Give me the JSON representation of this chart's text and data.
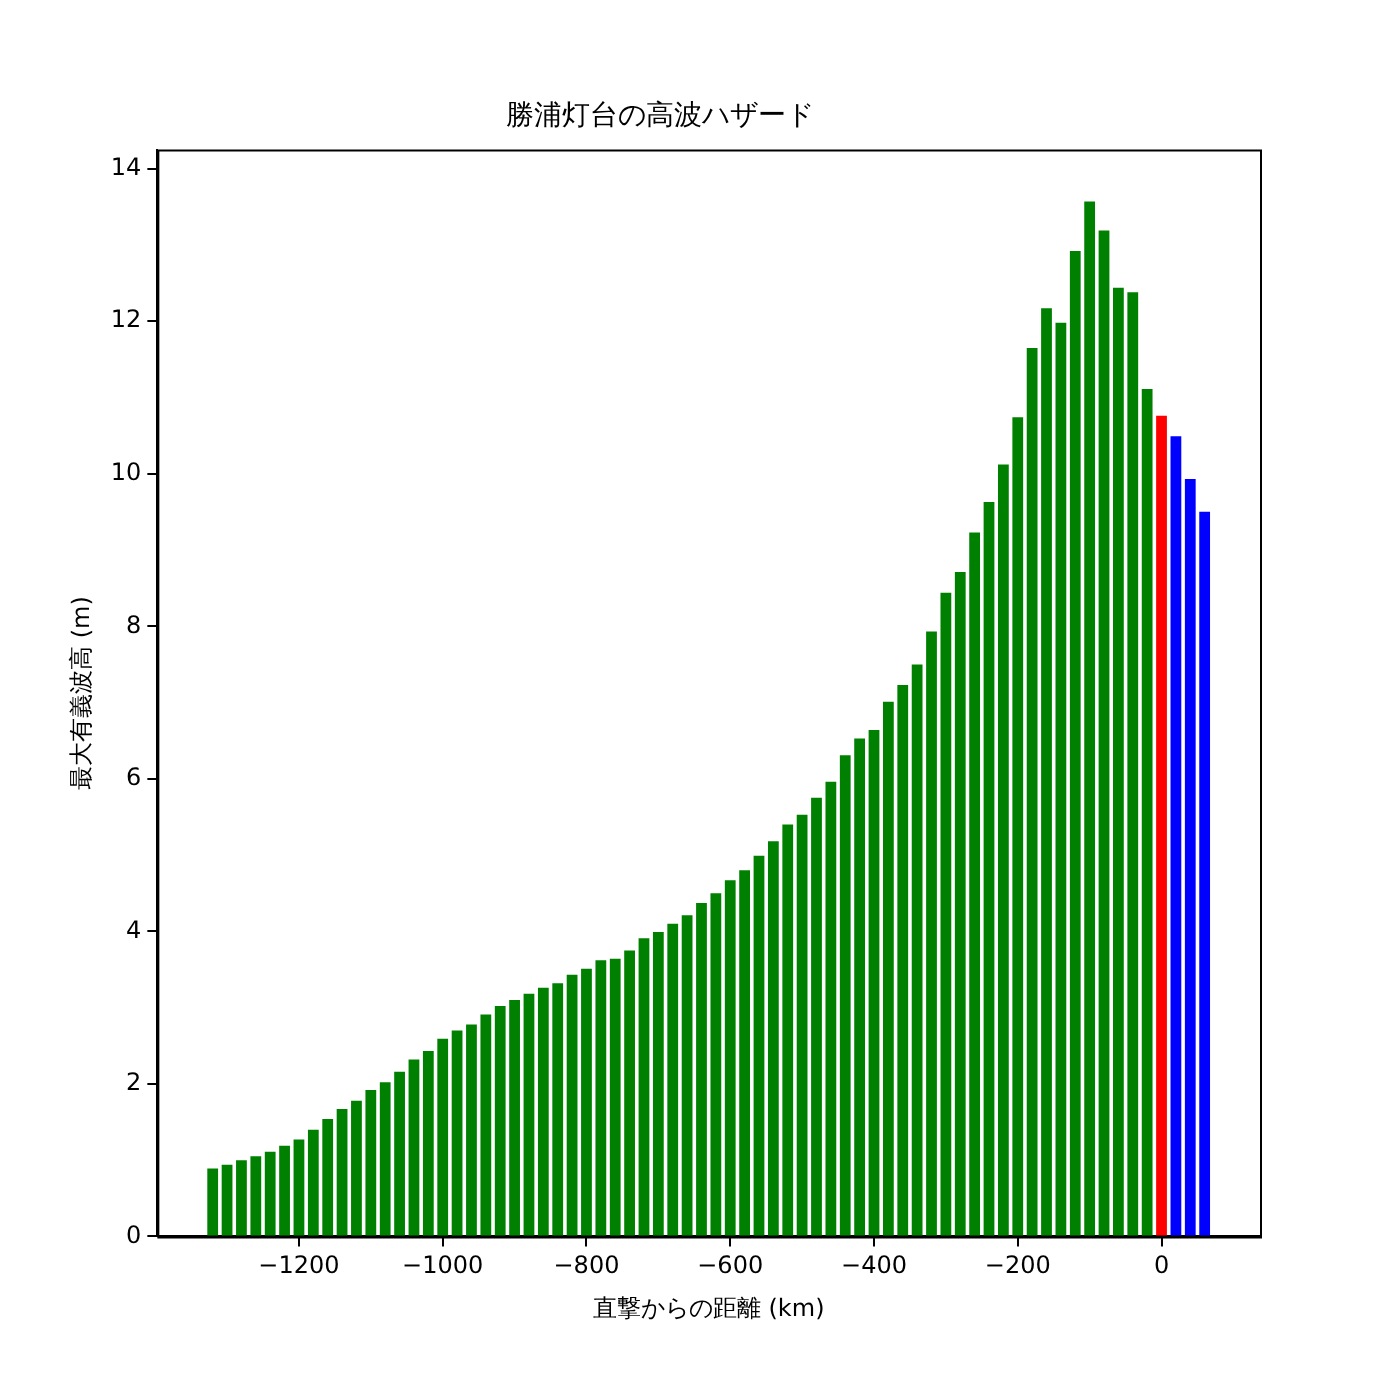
{
  "chart_data": {
    "type": "bar",
    "title": "勝浦灯台の高波ハザード",
    "xlabel": "直撃からの距離 (km)",
    "ylabel": "最大有義波高 (m)",
    "x": [
      -1320,
      -1300,
      -1280,
      -1260,
      -1240,
      -1220,
      -1200,
      -1180,
      -1160,
      -1140,
      -1120,
      -1100,
      -1080,
      -1060,
      -1040,
      -1020,
      -1000,
      -980,
      -960,
      -940,
      -920,
      -900,
      -880,
      -860,
      -840,
      -820,
      -800,
      -780,
      -760,
      -740,
      -720,
      -700,
      -680,
      -660,
      -640,
      -620,
      -600,
      -580,
      -560,
      -540,
      -520,
      -500,
      -480,
      -460,
      -440,
      -420,
      -400,
      -380,
      -360,
      -340,
      -320,
      -300,
      -280,
      -260,
      -240,
      -220,
      -200,
      -180,
      -160,
      -140,
      -120,
      -100,
      -80,
      -60,
      -40,
      -20,
      0,
      20,
      40,
      60
    ],
    "values": [
      0.89,
      0.94,
      1.0,
      1.05,
      1.11,
      1.19,
      1.27,
      1.4,
      1.54,
      1.67,
      1.78,
      1.92,
      2.02,
      2.16,
      2.32,
      2.43,
      2.59,
      2.7,
      2.78,
      2.91,
      3.02,
      3.1,
      3.18,
      3.26,
      3.32,
      3.43,
      3.51,
      3.62,
      3.64,
      3.75,
      3.91,
      3.99,
      4.1,
      4.21,
      4.37,
      4.5,
      4.67,
      4.8,
      4.99,
      5.18,
      5.4,
      5.53,
      5.75,
      5.96,
      6.31,
      6.53,
      6.64,
      7.01,
      7.23,
      7.5,
      7.93,
      8.44,
      8.71,
      9.23,
      9.63,
      10.12,
      10.74,
      11.65,
      12.17,
      11.98,
      12.92,
      13.57,
      13.19,
      12.44,
      12.38,
      11.11,
      10.76,
      10.49,
      9.93,
      9.5
    ],
    "colors": [
      "#008000",
      "#008000",
      "#008000",
      "#008000",
      "#008000",
      "#008000",
      "#008000",
      "#008000",
      "#008000",
      "#008000",
      "#008000",
      "#008000",
      "#008000",
      "#008000",
      "#008000",
      "#008000",
      "#008000",
      "#008000",
      "#008000",
      "#008000",
      "#008000",
      "#008000",
      "#008000",
      "#008000",
      "#008000",
      "#008000",
      "#008000",
      "#008000",
      "#008000",
      "#008000",
      "#008000",
      "#008000",
      "#008000",
      "#008000",
      "#008000",
      "#008000",
      "#008000",
      "#008000",
      "#008000",
      "#008000",
      "#008000",
      "#008000",
      "#008000",
      "#008000",
      "#008000",
      "#008000",
      "#008000",
      "#008000",
      "#008000",
      "#008000",
      "#008000",
      "#008000",
      "#008000",
      "#008000",
      "#008000",
      "#008000",
      "#008000",
      "#008000",
      "#008000",
      "#008000",
      "#008000",
      "#008000",
      "#008000",
      "#008000",
      "#008000",
      "#008000",
      "#ff0000",
      "#0000ff",
      "#0000ff",
      "#0000ff"
    ],
    "xlim": [
      -1397,
      137
    ],
    "xticks": [
      {
        "value": -1200,
        "label": "−1200"
      },
      {
        "value": -1000,
        "label": "−1000"
      },
      {
        "value": -800,
        "label": "−800"
      },
      {
        "value": -600,
        "label": "−600"
      },
      {
        "value": -400,
        "label": "−400"
      },
      {
        "value": -200,
        "label": "−200"
      },
      0
    ],
    "ylim": [
      0,
      14.25
    ],
    "yticks": [
      0,
      2,
      4,
      6,
      8,
      10,
      12,
      14
    ],
    "grid": false,
    "legend": false
  }
}
